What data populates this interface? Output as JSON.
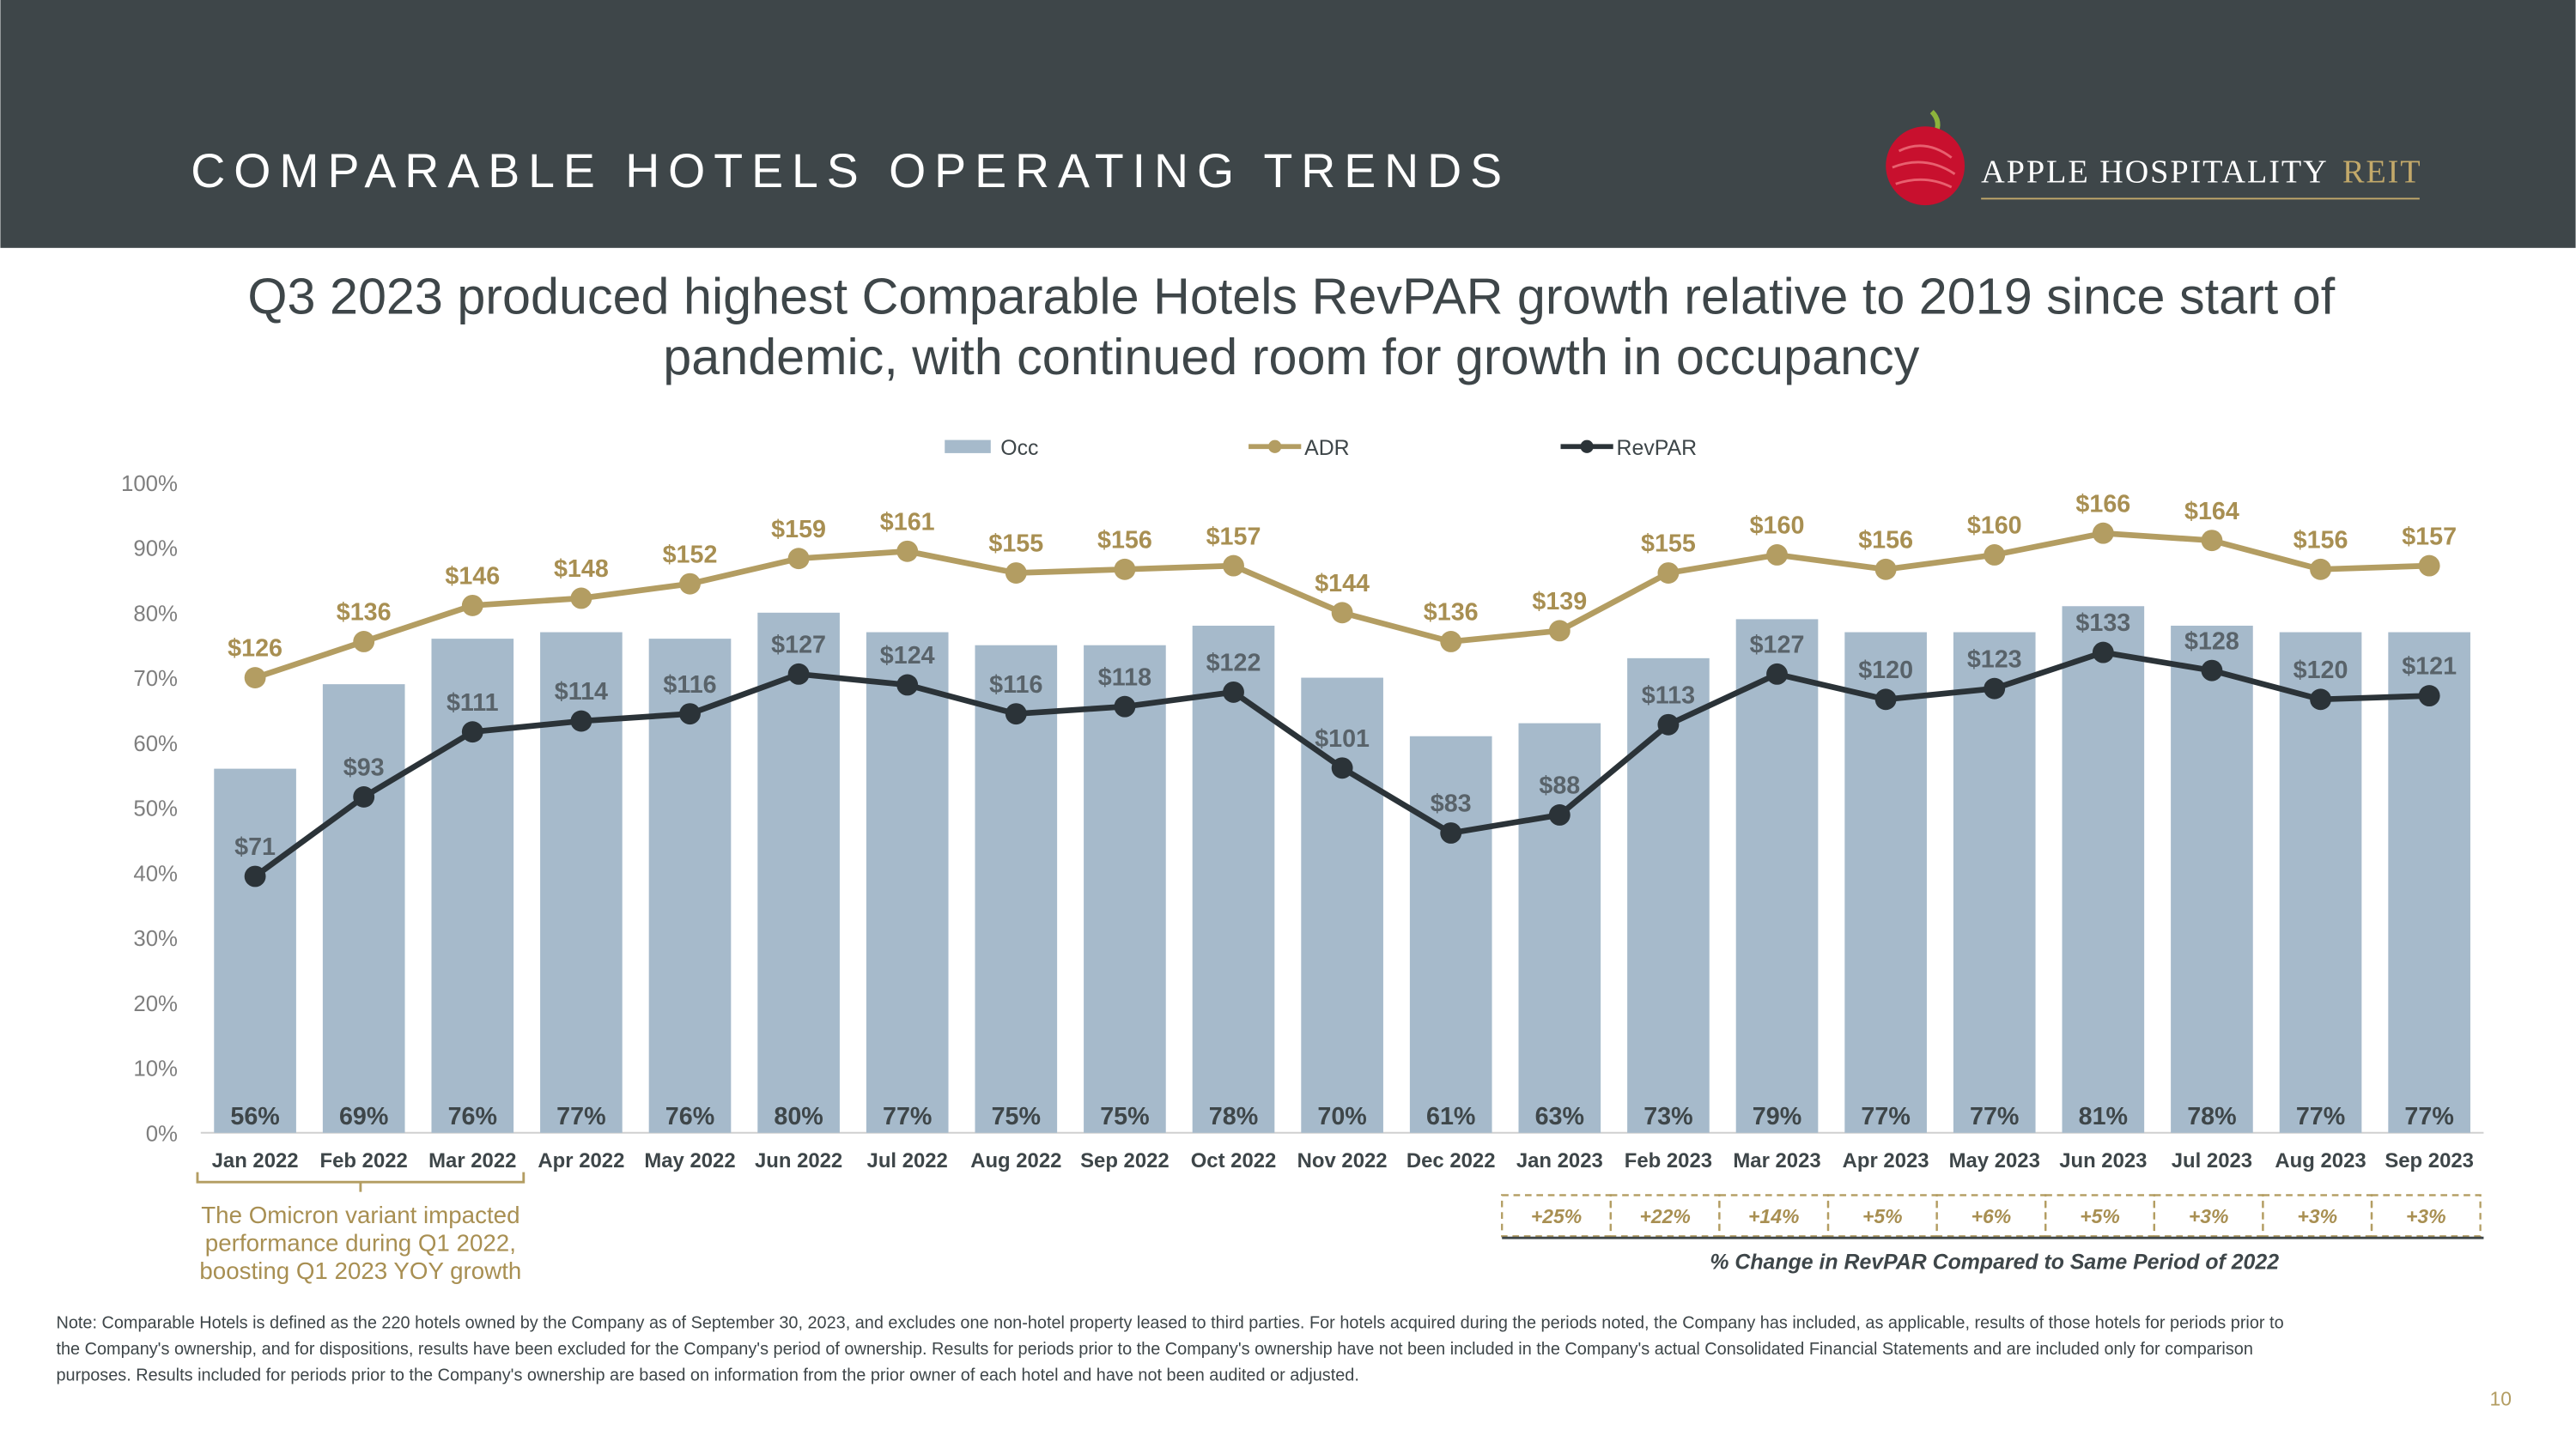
{
  "header": {
    "title": "COMPARABLE HOTELS OPERATING TRENDS",
    "logo": {
      "name": "APPLE HOSPITALITY",
      "suffix": "REIT"
    }
  },
  "subtitle": [
    "Q3 2023 produced highest Comparable Hotels RevPAR growth relative to 2019 since start of",
    "pandemic, with continued room for growth in occupancy"
  ],
  "chart_data": {
    "type": "bar_line",
    "categories": [
      "Jan 2022",
      "Feb 2022",
      "Mar 2022",
      "Apr 2022",
      "May 2022",
      "Jun 2022",
      "Jul 2022",
      "Aug 2022",
      "Sep 2022",
      "Oct 2022",
      "Nov 2022",
      "Dec 2022",
      "Jan 2023",
      "Feb 2023",
      "Mar 2023",
      "Apr 2023",
      "May 2023",
      "Jun 2023",
      "Jul 2023",
      "Aug 2023",
      "Sep 2023"
    ],
    "series": [
      {
        "name": "Occ",
        "type": "bar",
        "color": "#a6bacb",
        "values": [
          56,
          69,
          76,
          77,
          76,
          80,
          77,
          75,
          75,
          78,
          70,
          61,
          63,
          73,
          79,
          77,
          77,
          81,
          78,
          77,
          77
        ],
        "value_labels": [
          "56%",
          "69%",
          "76%",
          "77%",
          "76%",
          "80%",
          "77%",
          "75%",
          "75%",
          "78%",
          "70%",
          "61%",
          "63%",
          "73%",
          "79%",
          "77%",
          "77%",
          "81%",
          "78%",
          "77%",
          "77%"
        ]
      },
      {
        "name": "ADR",
        "type": "line",
        "axis": "y2",
        "color": "#b39d62",
        "values": [
          126,
          136,
          146,
          148,
          152,
          159,
          161,
          155,
          156,
          157,
          144,
          136,
          139,
          155,
          160,
          156,
          160,
          166,
          164,
          156,
          157
        ],
        "value_labels": [
          "$126",
          "$136",
          "$146",
          "$148",
          "$152",
          "$159",
          "$161",
          "$155",
          "$156",
          "$157",
          "$144",
          "$136",
          "$139",
          "$155",
          "$160",
          "$156",
          "$160",
          "$166",
          "$164",
          "$156",
          "$157"
        ]
      },
      {
        "name": "RevPAR",
        "type": "line",
        "axis": "y2",
        "color": "#2b3338",
        "values": [
          71,
          93,
          111,
          114,
          116,
          127,
          124,
          116,
          118,
          122,
          101,
          83,
          88,
          113,
          127,
          120,
          123,
          133,
          128,
          120,
          121
        ],
        "value_labels": [
          "$71",
          "$93",
          "$111",
          "$114",
          "$116",
          "$127",
          "$124",
          "$116",
          "$118",
          "$122",
          "$101",
          "$83",
          "$88",
          "$113",
          "$127",
          "$120",
          "$123",
          "$133",
          "$128",
          "$120",
          "$121"
        ]
      }
    ],
    "ylim": [
      0,
      100
    ],
    "yticks": [
      {
        "value": 0,
        "label": "0%"
      },
      {
        "value": 10,
        "label": "10%"
      },
      {
        "value": 20,
        "label": "20%"
      },
      {
        "value": 30,
        "label": "30%"
      },
      {
        "value": 40,
        "label": "40%"
      },
      {
        "value": 50,
        "label": "50%"
      },
      {
        "value": 60,
        "label": "60%"
      },
      {
        "value": 70,
        "label": "70%"
      },
      {
        "value": 80,
        "label": "80%"
      },
      {
        "value": 90,
        "label": "90%"
      },
      {
        "value": 100,
        "label": "100%"
      }
    ],
    "y2lim": [
      0,
      180
    ],
    "legend": "top",
    "annotation": [
      "The Omicron variant impacted",
      "performance during Q1 2022,",
      "boosting Q1 2023 YOY growth"
    ],
    "change": {
      "caption": "% Change in RevPAR Compared to Same Period of 2022",
      "values": [
        25,
        22,
        14,
        5,
        6,
        5,
        3,
        3,
        3
      ],
      "value_labels": [
        "+25%",
        "+22%",
        "+14%",
        "+5%",
        "+6%",
        "+5%",
        "+3%",
        "+3%",
        "+3%"
      ]
    }
  },
  "note": [
    "Note: Comparable Hotels is defined as the 220 hotels owned by the Company as of September 30, 2023, and excludes one non-hotel property leased to third parties. For hotels acquired during the periods noted, the Company has included, as applicable, results of those hotels for periods prior to",
    "the Company's ownership, and for dispositions, results have been excluded for the Company's period of ownership. Results for periods prior to the Company's ownership have not been included in the Company's actual Consolidated Financial Statements and are included only for comparison",
    "purposes. Results included for periods prior to the Company's ownership are based on information from the prior owner of each hotel and have not been audited or adjusted."
  ],
  "page_number": "10"
}
